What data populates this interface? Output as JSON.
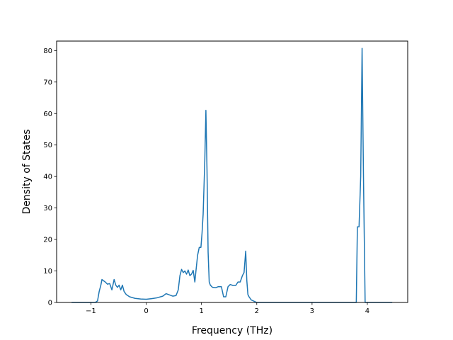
{
  "chart_data": {
    "type": "line",
    "xlabel": "Frequency (THz)",
    "ylabel": "Density of States",
    "xlim": [
      -1.62,
      4.73
    ],
    "ylim": [
      0,
      83
    ],
    "xticks": [
      -1,
      0,
      1,
      2,
      3,
      4
    ],
    "xtick_labels": [
      "−1",
      "0",
      "1",
      "2",
      "3",
      "4"
    ],
    "yticks": [
      0,
      10,
      20,
      30,
      40,
      50,
      60,
      70,
      80
    ],
    "ytick_labels": [
      "0",
      "10",
      "20",
      "30",
      "40",
      "50",
      "60",
      "70",
      "80"
    ],
    "grid": false,
    "colors": {
      "line": "#1f77b4",
      "frame": "#000000",
      "background": "#ffffff"
    },
    "series": [
      {
        "x": [
          -1.35,
          -1.0,
          -0.92,
          -0.88,
          -0.85,
          -0.82,
          -0.8,
          -0.78,
          -0.74,
          -0.7,
          -0.66,
          -0.62,
          -0.58,
          -0.55,
          -0.52,
          -0.49,
          -0.46,
          -0.43,
          -0.4,
          -0.36,
          -0.3,
          -0.2,
          -0.1,
          0.0,
          0.1,
          0.2,
          0.3,
          0.36,
          0.42,
          0.48,
          0.54,
          0.58,
          0.61,
          0.64,
          0.67,
          0.7,
          0.73,
          0.76,
          0.79,
          0.82,
          0.85,
          0.88,
          0.9,
          0.93,
          0.96,
          0.99,
          1.01,
          1.03,
          1.06,
          1.08,
          1.1,
          1.12,
          1.14,
          1.16,
          1.2,
          1.26,
          1.3,
          1.36,
          1.4,
          1.44,
          1.48,
          1.52,
          1.57,
          1.62,
          1.66,
          1.7,
          1.74,
          1.77,
          1.8,
          1.82,
          1.84,
          1.86,
          1.9,
          2.0,
          2.2,
          3.0,
          3.7,
          3.8,
          3.82,
          3.85,
          3.88,
          3.905,
          3.93,
          3.96,
          4.2,
          4.45
        ],
        "y": [
          0,
          0,
          0,
          0.5,
          3.5,
          5.5,
          7.3,
          7.0,
          6.5,
          5.8,
          6.0,
          4.0,
          7.3,
          5.5,
          4.8,
          5.5,
          4.0,
          5.5,
          3.5,
          2.5,
          1.8,
          1.3,
          1.1,
          1.0,
          1.2,
          1.5,
          2.0,
          2.8,
          2.4,
          2.0,
          2.2,
          4.0,
          8.5,
          10.5,
          9.5,
          10.0,
          9.0,
          10.3,
          8.5,
          9.0,
          10.2,
          6.5,
          10.0,
          15.0,
          17.5,
          17.5,
          22.0,
          28.0,
          45.0,
          61.0,
          42.0,
          16.0,
          6.5,
          5.5,
          4.8,
          4.7,
          5.0,
          5.0,
          1.8,
          1.8,
          5.0,
          5.7,
          5.4,
          5.4,
          6.5,
          6.5,
          8.5,
          9.5,
          16.3,
          7.0,
          2.5,
          1.8,
          0.8,
          0,
          0,
          0,
          0,
          0,
          24.0,
          24.0,
          40.0,
          80.7,
          40.0,
          0,
          0,
          0
        ]
      }
    ]
  }
}
